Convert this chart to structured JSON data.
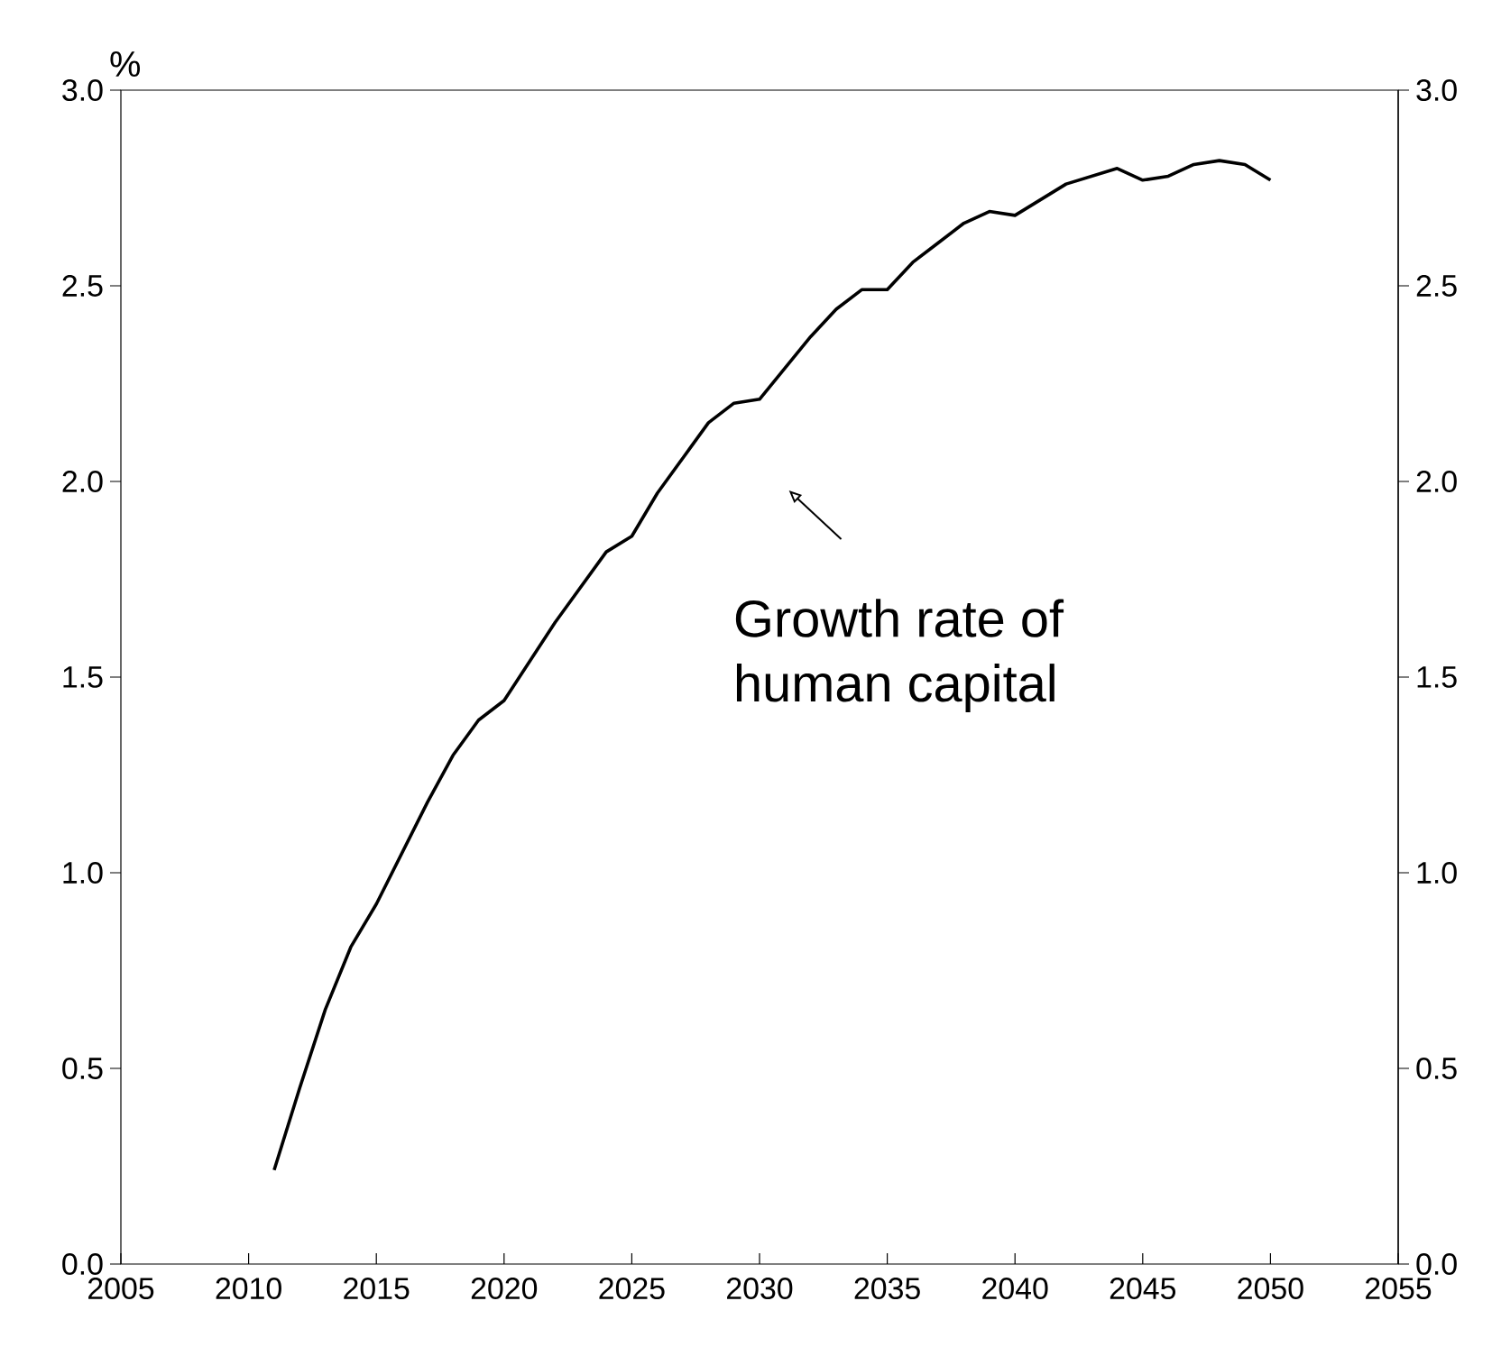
{
  "chart_data": {
    "type": "line",
    "ylabel": "%",
    "x": [
      2011,
      2012,
      2013,
      2014,
      2015,
      2016,
      2017,
      2018,
      2019,
      2020,
      2021,
      2022,
      2023,
      2024,
      2025,
      2026,
      2027,
      2028,
      2029,
      2030,
      2031,
      2032,
      2033,
      2034,
      2035,
      2036,
      2037,
      2038,
      2039,
      2040,
      2041,
      2042,
      2043,
      2044,
      2045,
      2046,
      2047,
      2048,
      2049,
      2050
    ],
    "series": [
      {
        "color": "#000000",
        "values": [
          0.24,
          0.45,
          0.65,
          0.81,
          0.92,
          1.05,
          1.18,
          1.3,
          1.39,
          1.44,
          1.54,
          1.64,
          1.73,
          1.82,
          1.86,
          1.97,
          2.06,
          2.15,
          2.2,
          2.21,
          2.29,
          2.37,
          2.44,
          2.49,
          2.49,
          2.56,
          2.61,
          2.66,
          2.69,
          2.68,
          2.72,
          2.76,
          2.78,
          2.8,
          2.77,
          2.78,
          2.81,
          2.82,
          2.81,
          2.77
        ]
      }
    ],
    "xlim": [
      2005,
      2055
    ],
    "xticks": [
      2005,
      2010,
      2015,
      2020,
      2025,
      2030,
      2035,
      2040,
      2045,
      2050,
      2055
    ],
    "ylim": [
      0,
      3
    ],
    "yticks": [
      {
        "value": 0,
        "label": "0.0"
      },
      {
        "value": 0.5,
        "label": "0.5"
      },
      {
        "value": 1,
        "label": "1.0"
      },
      {
        "value": 1.5,
        "label": "1.5"
      },
      {
        "value": 2,
        "label": "2.0"
      },
      {
        "value": 2.5,
        "label": "2.5"
      },
      {
        "value": 3,
        "label": "3.0"
      }
    ],
    "y2lim": [
      0,
      3
    ],
    "y2ticks": [
      {
        "value": 0,
        "label": "0.0"
      },
      {
        "value": 0.5,
        "label": "0.5"
      },
      {
        "value": 1,
        "label": "1.0"
      },
      {
        "value": 1.5,
        "label": "1.5"
      },
      {
        "value": 2,
        "label": "2.0"
      },
      {
        "value": 2.5,
        "label": "2.5"
      },
      {
        "value": 3,
        "label": "3.0"
      }
    ],
    "annotations": [
      "Growth rate of human capital"
    ],
    "marker": "none",
    "line_style": "solid"
  }
}
